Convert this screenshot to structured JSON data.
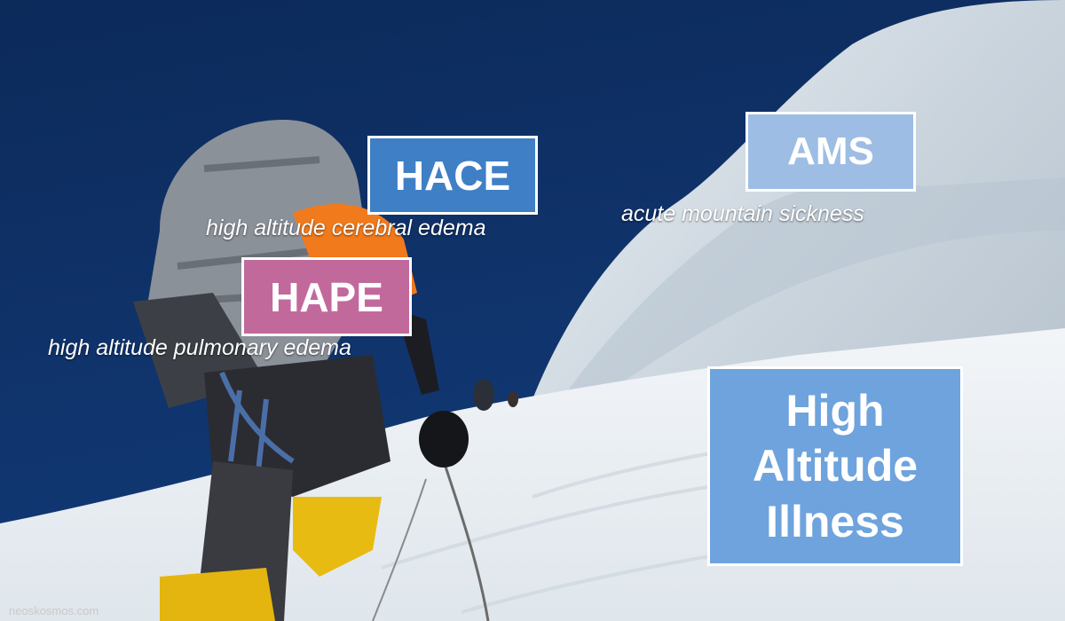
{
  "labels": {
    "hace": {
      "abbr": "HACE",
      "full": "high altitude cerebral edema",
      "color": "#3f7fc6"
    },
    "hape": {
      "abbr": "HAPE",
      "full": "high altitude pulmonary edema",
      "color": "#c2699c"
    },
    "ams": {
      "abbr": "AMS",
      "full": "acute mountain sickness",
      "color": "#9dbde4"
    },
    "main": {
      "lines": [
        "High",
        "Altitude",
        "Illness"
      ],
      "color": "#6ea3dd"
    }
  },
  "watermark": "neoskosmos.com"
}
